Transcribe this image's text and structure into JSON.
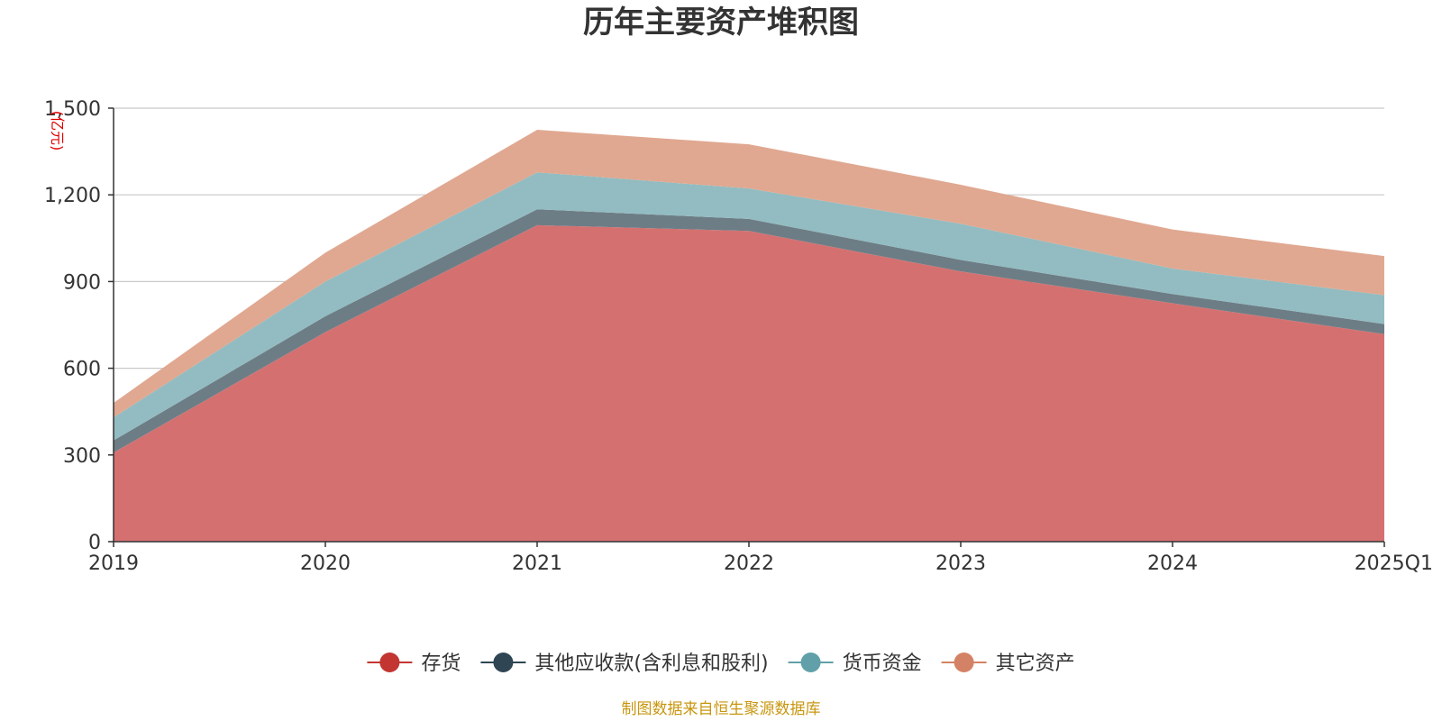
{
  "chart_data": {
    "type": "area",
    "stacked": true,
    "title": "历年主要资产堆积图",
    "unit_label": "(亿元)",
    "categories": [
      "2019",
      "2020",
      "2021",
      "2022",
      "2023",
      "2024",
      "2025Q1"
    ],
    "ylim": [
      0,
      1500
    ],
    "yticks": [
      0,
      300,
      600,
      900,
      1200,
      1500
    ],
    "ytick_labels": [
      "0",
      "300",
      "600",
      "900",
      "1,200",
      "1,500"
    ],
    "grid": true,
    "legend_position": "bottom-center",
    "series": [
      {
        "name": "存货",
        "color": "#c23531",
        "fill": "#d47170",
        "values": [
          308,
          725,
          1095,
          1075,
          935,
          825,
          718
        ]
      },
      {
        "name": "其他应收款(含利息和股利)",
        "color": "#2f4554",
        "fill": "#6d7d86",
        "values": [
          42,
          55,
          55,
          42,
          40,
          32,
          35
        ]
      },
      {
        "name": "货币资金",
        "color": "#61a0a8",
        "fill": "#92bcc1",
        "values": [
          80,
          120,
          128,
          105,
          125,
          88,
          100
        ]
      },
      {
        "name": "其它资产",
        "color": "#d48265",
        "fill": "#e0a891",
        "values": [
          50,
          100,
          147,
          153,
          135,
          135,
          135
        ]
      }
    ]
  },
  "footer": {
    "source_text": "制图数据来自恒生聚源数据库"
  }
}
